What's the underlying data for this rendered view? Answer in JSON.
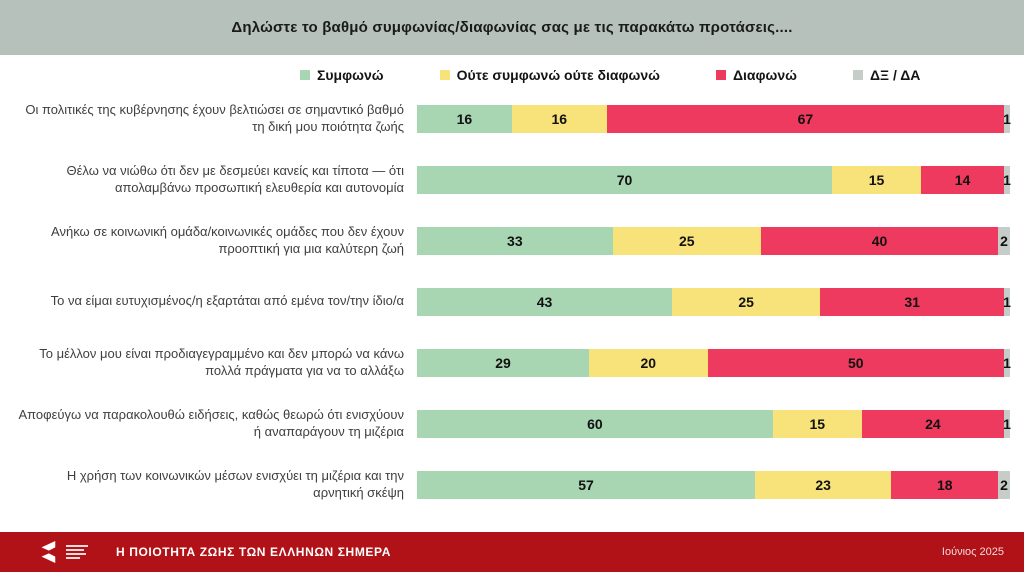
{
  "header": {
    "title": "Δηλώστε το βαθμό συμφωνίας/διαφωνίας σας με τις παρακάτω προτάσεις...."
  },
  "chart_data": {
    "type": "bar",
    "orientation": "horizontal",
    "stacked": true,
    "unit": "percent",
    "xlim": [
      0,
      100
    ],
    "legend_position": "top",
    "legend": [
      {
        "label": "Συμφωνώ",
        "color": "#a8d5b2"
      },
      {
        "label": "Ούτε συμφωνώ ούτε διαφωνώ",
        "color": "#f8e27a"
      },
      {
        "label": "Διαφωνώ",
        "color": "#ee3a5e"
      },
      {
        "label": "ΔΞ / ΔΑ",
        "color": "#c6ccc8"
      }
    ],
    "categories": [
      "Οι πολιτικές της κυβέρνησης έχουν βελτιώσει σε σημαντικό βαθμό τη δική μου ποιότητα ζωής",
      "Θέλω να νιώθω ότι δεν με δεσμεύει κανείς και τίποτα — ότι απολαμβάνω προσωπική ελευθερία και αυτονομία",
      "Ανήκω σε κοινωνική ομάδα/κοινωνικές ομάδες που δεν έχουν προοπτική για μια καλύτερη ζωή",
      "Το να είμαι ευτυχισμένος/η εξαρτάται από εμένα τον/την ίδιο/α",
      "Το μέλλον μου είναι προδιαγεγραμμένο και δεν μπορώ να κάνω πολλά πράγματα για να το αλλάξω",
      "Αποφεύγω να παρακολουθώ ειδήσεις, καθώς θεωρώ ότι ενισχύουν ή αναπαράγουν τη μιζέρια",
      "Η χρήση των κοινωνικών μέσων ενισχύει τη μιζέρια και την αρνητική σκέψη"
    ],
    "series": [
      {
        "name": "Συμφωνώ",
        "color": "#a8d5b2",
        "values": [
          16,
          70,
          33,
          43,
          29,
          60,
          57
        ]
      },
      {
        "name": "Ούτε συμφωνώ ούτε διαφωνώ",
        "color": "#f8e27a",
        "values": [
          16,
          15,
          25,
          25,
          20,
          15,
          23
        ]
      },
      {
        "name": "Διαφωνώ",
        "color": "#ee3a5e",
        "values": [
          67,
          14,
          40,
          31,
          50,
          24,
          18
        ]
      },
      {
        "name": "ΔΞ / ΔΑ",
        "color": "#c6ccc8",
        "values": [
          1,
          1,
          2,
          1,
          1,
          1,
          2
        ]
      }
    ],
    "title": "Δηλώστε το βαθμό συμφωνίας/διαφωνίας σας με τις παρακάτω προτάσεις....",
    "xlabel": "",
    "ylabel": ""
  },
  "footer": {
    "title": "Η ΠΟΙΟΤΗΤΑ ΖΩΗΣ ΤΩΝ ΕΛΛΗΝΩΝ ΣΗΜΕΡΑ",
    "date": "Ιούνιος 2025",
    "background": "#b01218"
  }
}
